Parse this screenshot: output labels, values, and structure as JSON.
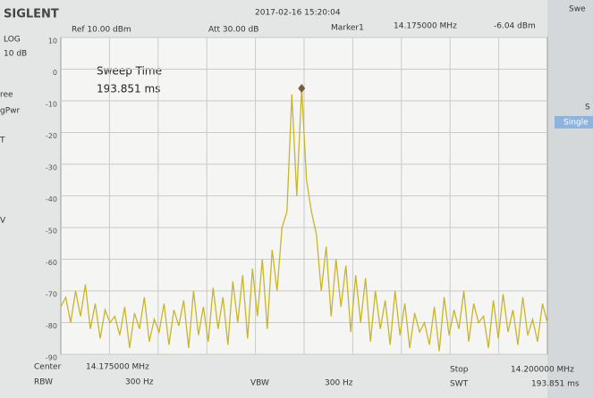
{
  "header": {
    "brand": "SIGLENT",
    "datetime": "2017-02-16  15:20:04",
    "ref": "Ref  10.00 dBm",
    "att": "Att  30.00 dB"
  },
  "left_panel": {
    "scale": "LOG",
    "div": "10 dB",
    "items": [
      "ree",
      "gPwr",
      "T",
      "V"
    ]
  },
  "right_panel": {
    "items": [
      "Swe",
      "S",
      "Single"
    ]
  },
  "footer": {
    "center_label": "Center",
    "center_value": "14.175000 MHz",
    "stop_label": "Stop",
    "stop_value": "14.200000 MHz",
    "rbw_label": "RBW",
    "rbw_value": "300 Hz",
    "vbw_label": "VBW",
    "vbw_value": "300 Hz",
    "swt_label": "SWT",
    "swt_value": "193.851 ms"
  },
  "chart_data": {
    "type": "line",
    "annotation": {
      "title": "Sweep Time",
      "value": "193.851 ms"
    },
    "marker": {
      "name": "Marker1",
      "frequency": "14.175000 MHz",
      "value": -6.04,
      "value_label": "-6.04 dBm"
    },
    "ylim": [
      -90,
      10
    ],
    "yticks": [
      10,
      0,
      -10,
      -20,
      -30,
      -40,
      -50,
      -60,
      -70,
      -80,
      -90
    ],
    "grid": true,
    "color": "#c9b52a",
    "values": [
      -75,
      -72,
      -80,
      -70,
      -78,
      -68,
      -82,
      -74,
      -85,
      -76,
      -80,
      -78,
      -84,
      -75,
      -88,
      -77,
      -82,
      -72,
      -86,
      -79,
      -83,
      -74,
      -87,
      -76,
      -81,
      -73,
      -88,
      -70,
      -84,
      -75,
      -86,
      -69,
      -82,
      -72,
      -87,
      -67,
      -80,
      -65,
      -85,
      -63,
      -78,
      -60,
      -82,
      -57,
      -70,
      -50,
      -45,
      -8,
      -40,
      -6,
      -35,
      -45,
      -52,
      -70,
      -56,
      -78,
      -60,
      -75,
      -62,
      -83,
      -65,
      -80,
      -66,
      -86,
      -70,
      -82,
      -73,
      -87,
      -70,
      -84,
      -74,
      -88,
      -77,
      -83,
      -80,
      -87,
      -75,
      -89,
      -72,
      -84,
      -76,
      -82,
      -70,
      -86,
      -74,
      -80,
      -78,
      -88,
      -73,
      -85,
      -71,
      -83,
      -76,
      -87,
      -72,
      -84,
      -79,
      -86,
      -74,
      -80
    ]
  }
}
